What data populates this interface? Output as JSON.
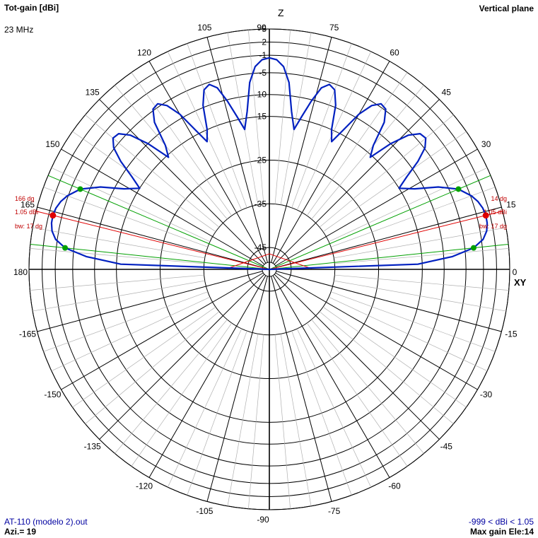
{
  "header": {
    "title": "Tot-gain [dBi]",
    "frequency": "23 MHz",
    "plane": "Vertical plane"
  },
  "footer": {
    "file": "AT-110 (modelo 2).out",
    "azimuth": "Azi.= 19",
    "range": "-999 < dBi < 1.05",
    "max_gain": "Max gain Ele:14"
  },
  "axis_labels": {
    "top": "Z",
    "right": "XY"
  },
  "colors": {
    "pattern": "#0020c0",
    "beamwidth": "#00a000",
    "max_gain": "#e00000",
    "grid": "#000000"
  },
  "chart_data": {
    "type": "polar",
    "angular_tick_labels": [
      "0",
      "15",
      "30",
      "45",
      "60",
      "75",
      "90",
      "105",
      "120",
      "135",
      "150",
      "165",
      "180",
      "-165",
      "-150",
      "-135",
      "-120",
      "-105",
      "-90",
      "-75",
      "-60",
      "-45",
      "-30",
      "-15"
    ],
    "radial_tick_labels": [
      "5",
      "2",
      "-1",
      "-5",
      "-10",
      "-15",
      "-25",
      "-35",
      "-45"
    ],
    "radial_ticks_db": [
      5,
      2,
      -1,
      -5,
      -10,
      -15,
      -25,
      -35,
      -45
    ],
    "r_range_db": [
      -50,
      5
    ],
    "unit": "dBi",
    "max_gain_db": 1.05,
    "max_gain_elevation_deg": 14,
    "beamwidth_deg": 17,
    "beamwidth_lower_deg": 6,
    "beamwidth_upper_deg": 23,
    "annotations_right": [
      "14 dg",
      "1.05 dBi",
      "bw: 17 dg"
    ],
    "annotations_left": [
      "166 dg",
      "1.05 dBi",
      "bw: 17 dg"
    ],
    "pattern": {
      "elevation_deg": [
        0,
        2,
        4,
        6,
        8,
        10,
        12,
        14,
        16,
        18,
        20,
        23,
        26,
        29,
        32,
        34,
        36,
        38,
        40,
        42,
        44,
        46,
        48,
        50,
        52,
        54,
        56,
        58,
        60,
        62,
        64,
        66,
        68,
        70,
        72,
        74,
        76,
        78,
        80,
        82,
        84,
        86,
        88,
        90
      ],
      "gain_dbi": [
        -50,
        -16,
        -8,
        -3,
        -0.6,
        0.5,
        0.95,
        1.05,
        0.8,
        0.2,
        -0.8,
        -3,
        -7,
        -12,
        -15,
        -12,
        -8,
        -4.8,
        -3.3,
        -3.6,
        -5.8,
        -10,
        -15.5,
        -13,
        -7.3,
        -4.7,
        -4.3,
        -5.8,
        -9,
        -13.8,
        -17.5,
        -15,
        -9.5,
        -6.3,
        -5.5,
        -6.8,
        -10.3,
        -14.2,
        -17.5,
        -13.5,
        -7,
        -3.5,
        -2,
        -1.6
      ]
    }
  }
}
